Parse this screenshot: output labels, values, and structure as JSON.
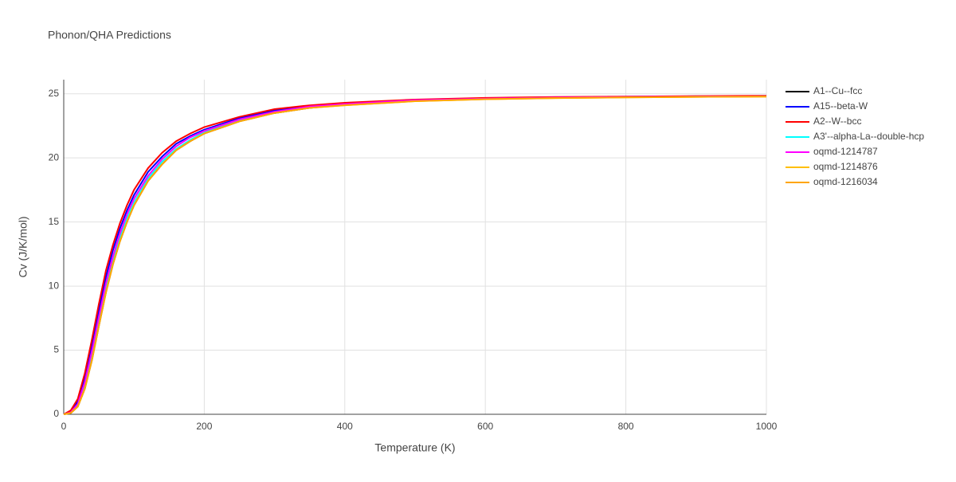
{
  "chart_data": {
    "type": "line",
    "title": "Phonon/QHA Predictions",
    "x_label": "Temperature (K)",
    "y_label": "Cv (J/K/mol)",
    "x": [
      0,
      10,
      20,
      30,
      40,
      50,
      60,
      70,
      80,
      90,
      100,
      120,
      140,
      160,
      180,
      200,
      250,
      300,
      350,
      400,
      500,
      600,
      700,
      800,
      900,
      1000
    ],
    "series": [
      {
        "name": "A1--Cu--fcc",
        "color": "#000000",
        "values": [
          0,
          0.1,
          0.6,
          2.0,
          4.2,
          6.9,
          9.5,
          11.7,
          13.5,
          15.0,
          16.3,
          18.2,
          19.5,
          20.6,
          21.3,
          21.9,
          22.85,
          23.5,
          23.9,
          24.15,
          24.45,
          24.6,
          24.7,
          24.75,
          24.8,
          24.82
        ]
      },
      {
        "name": "A15--beta-W",
        "color": "#0000ff",
        "values": [
          0,
          0.2,
          1.0,
          2.8,
          5.3,
          8.1,
          10.7,
          12.8,
          14.5,
          15.9,
          17.1,
          18.9,
          20.1,
          21.1,
          21.7,
          22.2,
          23.1,
          23.7,
          24.0,
          24.2,
          24.5,
          24.65,
          24.72,
          24.77,
          24.8,
          24.82
        ]
      },
      {
        "name": "A2--W--bcc",
        "color": "#ff0000",
        "values": [
          0,
          0.3,
          1.2,
          3.2,
          5.8,
          8.6,
          11.2,
          13.2,
          14.9,
          16.3,
          17.5,
          19.2,
          20.4,
          21.3,
          21.9,
          22.4,
          23.2,
          23.8,
          24.1,
          24.3,
          24.55,
          24.68,
          24.75,
          24.78,
          24.82,
          24.85
        ]
      },
      {
        "name": "A3'--alpha-La--double-hcp",
        "color": "#00ffff",
        "values": [
          0,
          0.12,
          0.7,
          2.3,
          4.6,
          7.3,
          9.9,
          12.0,
          13.8,
          15.3,
          16.5,
          18.4,
          19.7,
          20.7,
          21.4,
          22.0,
          22.9,
          23.55,
          23.95,
          24.15,
          24.45,
          24.6,
          24.68,
          24.73,
          24.77,
          24.8
        ]
      },
      {
        "name": "oqmd-1214787",
        "color": "#ff00ff",
        "values": [
          0,
          0.15,
          0.8,
          2.5,
          4.9,
          7.6,
          10.2,
          12.3,
          14.1,
          15.6,
          16.8,
          18.6,
          19.9,
          20.9,
          21.6,
          22.1,
          23.0,
          23.6,
          24.0,
          24.2,
          24.5,
          24.62,
          24.7,
          24.75,
          24.78,
          24.8
        ]
      },
      {
        "name": "oqmd-1214876",
        "color": "#ffbf00",
        "values": [
          0,
          0.1,
          0.6,
          2.0,
          4.2,
          6.9,
          9.5,
          11.7,
          13.5,
          15.0,
          16.3,
          18.2,
          19.5,
          20.6,
          21.3,
          21.9,
          22.85,
          23.5,
          23.9,
          24.1,
          24.42,
          24.58,
          24.66,
          24.72,
          24.76,
          24.78
        ]
      },
      {
        "name": "oqmd-1216034",
        "color": "#ffa500",
        "values": [
          0,
          0.1,
          0.6,
          2.0,
          4.2,
          6.9,
          9.5,
          11.7,
          13.5,
          15.0,
          16.3,
          18.2,
          19.5,
          20.6,
          21.3,
          21.9,
          22.85,
          23.5,
          23.9,
          24.1,
          24.42,
          24.58,
          24.66,
          24.72,
          24.76,
          24.78
        ]
      }
    ],
    "xlim": [
      0,
      1000
    ],
    "xticks": [
      0,
      200,
      400,
      600,
      800,
      1000
    ],
    "ylim": [
      0,
      26.1
    ],
    "yticks": [
      0,
      5,
      10,
      15,
      20,
      25
    ],
    "grid": true
  }
}
